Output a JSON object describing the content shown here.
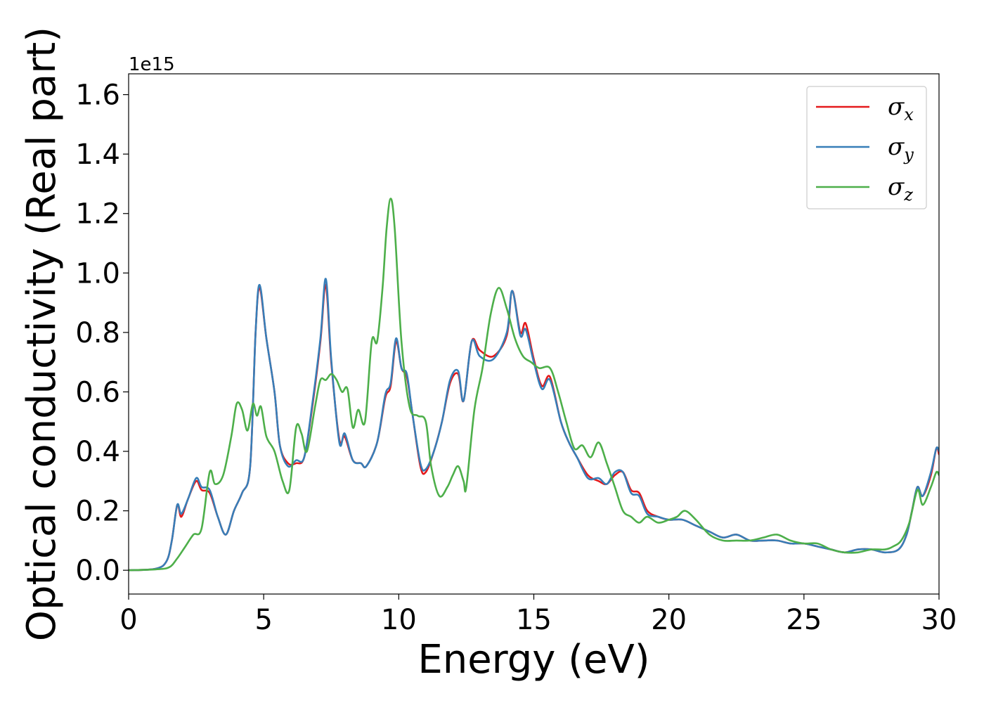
{
  "chart_data": {
    "type": "line",
    "xlabel": "Energy (eV)",
    "ylabel": "Optical conductivity (Real part)",
    "y_offset_label": "1e15",
    "xlim": [
      0,
      30
    ],
    "ylim": [
      -0.08,
      1.67
    ],
    "x_ticks": [
      0,
      5,
      10,
      15,
      20,
      25,
      30
    ],
    "x_tick_labels": [
      "0",
      "5",
      "10",
      "15",
      "20",
      "25",
      "30"
    ],
    "y_ticks": [
      0.0,
      0.2,
      0.4,
      0.6,
      0.8,
      1.0,
      1.2,
      1.4,
      1.6
    ],
    "y_tick_labels": [
      "0.0",
      "0.2",
      "0.4",
      "0.6",
      "0.8",
      "1.0",
      "1.2",
      "1.4",
      "1.6"
    ],
    "grid": false,
    "legend_position": "top-right",
    "series": [
      {
        "name": "σx",
        "symbol": "σ",
        "subscript": "x",
        "color": "#e41a1c",
        "points": [
          [
            0,
            0
          ],
          [
            1,
            0.005
          ],
          [
            1.4,
            0.03
          ],
          [
            1.6,
            0.1
          ],
          [
            1.8,
            0.22
          ],
          [
            1.95,
            0.18
          ],
          [
            2.2,
            0.24
          ],
          [
            2.5,
            0.3
          ],
          [
            2.7,
            0.27
          ],
          [
            3.0,
            0.26
          ],
          [
            3.3,
            0.18
          ],
          [
            3.6,
            0.12
          ],
          [
            3.9,
            0.2
          ],
          [
            4.2,
            0.26
          ],
          [
            4.5,
            0.35
          ],
          [
            4.7,
            0.8
          ],
          [
            4.85,
            0.95
          ],
          [
            5.1,
            0.78
          ],
          [
            5.4,
            0.6
          ],
          [
            5.6,
            0.42
          ],
          [
            5.9,
            0.36
          ],
          [
            6.2,
            0.36
          ],
          [
            6.5,
            0.38
          ],
          [
            6.8,
            0.55
          ],
          [
            7.1,
            0.77
          ],
          [
            7.3,
            0.96
          ],
          [
            7.5,
            0.7
          ],
          [
            7.8,
            0.44
          ],
          [
            8.0,
            0.45
          ],
          [
            8.3,
            0.37
          ],
          [
            8.6,
            0.36
          ],
          [
            8.8,
            0.35
          ],
          [
            9.2,
            0.43
          ],
          [
            9.5,
            0.58
          ],
          [
            9.7,
            0.62
          ],
          [
            9.9,
            0.77
          ],
          [
            10.1,
            0.68
          ],
          [
            10.3,
            0.65
          ],
          [
            10.5,
            0.53
          ],
          [
            10.8,
            0.35
          ],
          [
            11.0,
            0.33
          ],
          [
            11.3,
            0.4
          ],
          [
            11.6,
            0.5
          ],
          [
            11.9,
            0.63
          ],
          [
            12.2,
            0.66
          ],
          [
            12.4,
            0.57
          ],
          [
            12.7,
            0.77
          ],
          [
            13.0,
            0.74
          ],
          [
            13.5,
            0.72
          ],
          [
            14.0,
            0.79
          ],
          [
            14.2,
            0.94
          ],
          [
            14.5,
            0.8
          ],
          [
            14.7,
            0.83
          ],
          [
            15.0,
            0.71
          ],
          [
            15.3,
            0.62
          ],
          [
            15.6,
            0.65
          ],
          [
            16.0,
            0.5
          ],
          [
            16.3,
            0.43
          ],
          [
            16.6,
            0.38
          ],
          [
            17.0,
            0.32
          ],
          [
            17.4,
            0.3
          ],
          [
            17.7,
            0.29
          ],
          [
            18.0,
            0.32
          ],
          [
            18.3,
            0.33
          ],
          [
            18.6,
            0.27
          ],
          [
            18.9,
            0.26
          ],
          [
            19.2,
            0.2
          ],
          [
            19.6,
            0.18
          ],
          [
            20.0,
            0.17
          ],
          [
            20.5,
            0.17
          ],
          [
            21.0,
            0.15
          ],
          [
            21.5,
            0.13
          ],
          [
            22.0,
            0.11
          ],
          [
            22.5,
            0.12
          ],
          [
            23.0,
            0.1
          ],
          [
            23.5,
            0.1
          ],
          [
            24.0,
            0.1
          ],
          [
            24.5,
            0.09
          ],
          [
            25.0,
            0.09
          ],
          [
            25.5,
            0.08
          ],
          [
            26.0,
            0.07
          ],
          [
            26.5,
            0.06
          ],
          [
            27.0,
            0.07
          ],
          [
            27.5,
            0.07
          ],
          [
            28.0,
            0.06
          ],
          [
            28.5,
            0.07
          ],
          [
            28.8,
            0.12
          ],
          [
            29.0,
            0.2
          ],
          [
            29.2,
            0.28
          ],
          [
            29.4,
            0.25
          ],
          [
            29.7,
            0.32
          ],
          [
            29.9,
            0.41
          ],
          [
            30.0,
            0.39
          ]
        ]
      },
      {
        "name": "σy",
        "symbol": "σ",
        "subscript": "y",
        "color": "#377eb8",
        "points": [
          [
            0,
            0
          ],
          [
            1,
            0.005
          ],
          [
            1.4,
            0.03
          ],
          [
            1.6,
            0.1
          ],
          [
            1.8,
            0.22
          ],
          [
            1.95,
            0.19
          ],
          [
            2.2,
            0.24
          ],
          [
            2.5,
            0.31
          ],
          [
            2.7,
            0.28
          ],
          [
            3.0,
            0.27
          ],
          [
            3.3,
            0.18
          ],
          [
            3.6,
            0.12
          ],
          [
            3.9,
            0.2
          ],
          [
            4.2,
            0.26
          ],
          [
            4.5,
            0.35
          ],
          [
            4.7,
            0.8
          ],
          [
            4.85,
            0.96
          ],
          [
            5.1,
            0.78
          ],
          [
            5.4,
            0.6
          ],
          [
            5.6,
            0.42
          ],
          [
            5.9,
            0.35
          ],
          [
            6.2,
            0.37
          ],
          [
            6.5,
            0.38
          ],
          [
            6.8,
            0.56
          ],
          [
            7.1,
            0.78
          ],
          [
            7.3,
            0.98
          ],
          [
            7.5,
            0.71
          ],
          [
            7.8,
            0.43
          ],
          [
            8.0,
            0.46
          ],
          [
            8.3,
            0.37
          ],
          [
            8.6,
            0.36
          ],
          [
            8.8,
            0.35
          ],
          [
            9.2,
            0.43
          ],
          [
            9.5,
            0.59
          ],
          [
            9.7,
            0.63
          ],
          [
            9.9,
            0.78
          ],
          [
            10.1,
            0.68
          ],
          [
            10.3,
            0.66
          ],
          [
            10.5,
            0.53
          ],
          [
            10.8,
            0.36
          ],
          [
            11.0,
            0.34
          ],
          [
            11.3,
            0.4
          ],
          [
            11.6,
            0.5
          ],
          [
            11.9,
            0.64
          ],
          [
            12.2,
            0.67
          ],
          [
            12.4,
            0.57
          ],
          [
            12.7,
            0.77
          ],
          [
            13.0,
            0.72
          ],
          [
            13.5,
            0.71
          ],
          [
            14.0,
            0.8
          ],
          [
            14.2,
            0.94
          ],
          [
            14.5,
            0.79
          ],
          [
            14.7,
            0.81
          ],
          [
            15.0,
            0.7
          ],
          [
            15.3,
            0.61
          ],
          [
            15.6,
            0.64
          ],
          [
            16.0,
            0.5
          ],
          [
            16.3,
            0.43
          ],
          [
            16.6,
            0.38
          ],
          [
            17.0,
            0.31
          ],
          [
            17.4,
            0.31
          ],
          [
            17.7,
            0.29
          ],
          [
            18.0,
            0.33
          ],
          [
            18.3,
            0.33
          ],
          [
            18.6,
            0.26
          ],
          [
            18.9,
            0.25
          ],
          [
            19.2,
            0.19
          ],
          [
            19.6,
            0.18
          ],
          [
            20.0,
            0.17
          ],
          [
            20.5,
            0.17
          ],
          [
            21.0,
            0.15
          ],
          [
            21.5,
            0.13
          ],
          [
            22.0,
            0.11
          ],
          [
            22.5,
            0.12
          ],
          [
            23.0,
            0.1
          ],
          [
            23.5,
            0.1
          ],
          [
            24.0,
            0.1
          ],
          [
            24.5,
            0.09
          ],
          [
            25.0,
            0.09
          ],
          [
            25.5,
            0.08
          ],
          [
            26.0,
            0.07
          ],
          [
            26.5,
            0.06
          ],
          [
            27.0,
            0.07
          ],
          [
            27.5,
            0.07
          ],
          [
            28.0,
            0.06
          ],
          [
            28.5,
            0.07
          ],
          [
            28.8,
            0.12
          ],
          [
            29.0,
            0.2
          ],
          [
            29.2,
            0.28
          ],
          [
            29.4,
            0.25
          ],
          [
            29.7,
            0.33
          ],
          [
            29.9,
            0.41
          ],
          [
            30.0,
            0.4
          ]
        ]
      },
      {
        "name": "σz",
        "symbol": "σ",
        "subscript": "z",
        "color": "#4daf4a",
        "points": [
          [
            0,
            0
          ],
          [
            1,
            0.003
          ],
          [
            1.5,
            0.01
          ],
          [
            1.8,
            0.04
          ],
          [
            2.1,
            0.08
          ],
          [
            2.4,
            0.12
          ],
          [
            2.7,
            0.14
          ],
          [
            3.0,
            0.33
          ],
          [
            3.2,
            0.29
          ],
          [
            3.5,
            0.32
          ],
          [
            3.8,
            0.45
          ],
          [
            4.0,
            0.56
          ],
          [
            4.2,
            0.54
          ],
          [
            4.4,
            0.47
          ],
          [
            4.6,
            0.56
          ],
          [
            4.75,
            0.52
          ],
          [
            4.9,
            0.55
          ],
          [
            5.1,
            0.45
          ],
          [
            5.4,
            0.4
          ],
          [
            5.7,
            0.3
          ],
          [
            5.95,
            0.27
          ],
          [
            6.2,
            0.48
          ],
          [
            6.4,
            0.46
          ],
          [
            6.6,
            0.4
          ],
          [
            6.9,
            0.55
          ],
          [
            7.1,
            0.64
          ],
          [
            7.3,
            0.64
          ],
          [
            7.5,
            0.66
          ],
          [
            7.7,
            0.64
          ],
          [
            7.9,
            0.6
          ],
          [
            8.1,
            0.61
          ],
          [
            8.3,
            0.48
          ],
          [
            8.5,
            0.54
          ],
          [
            8.75,
            0.5
          ],
          [
            9.0,
            0.77
          ],
          [
            9.2,
            0.77
          ],
          [
            9.4,
            0.95
          ],
          [
            9.55,
            1.15
          ],
          [
            9.7,
            1.25
          ],
          [
            9.85,
            1.15
          ],
          [
            10.1,
            0.77
          ],
          [
            10.4,
            0.55
          ],
          [
            10.7,
            0.52
          ],
          [
            11.0,
            0.5
          ],
          [
            11.2,
            0.35
          ],
          [
            11.5,
            0.25
          ],
          [
            11.8,
            0.28
          ],
          [
            12.0,
            0.32
          ],
          [
            12.2,
            0.35
          ],
          [
            12.4,
            0.3
          ],
          [
            12.5,
            0.28
          ],
          [
            12.8,
            0.54
          ],
          [
            13.1,
            0.68
          ],
          [
            13.4,
            0.86
          ],
          [
            13.7,
            0.95
          ],
          [
            14.0,
            0.88
          ],
          [
            14.3,
            0.78
          ],
          [
            14.6,
            0.72
          ],
          [
            14.9,
            0.7
          ],
          [
            15.2,
            0.68
          ],
          [
            15.6,
            0.68
          ],
          [
            15.9,
            0.6
          ],
          [
            16.2,
            0.5
          ],
          [
            16.5,
            0.41
          ],
          [
            16.8,
            0.42
          ],
          [
            17.1,
            0.38
          ],
          [
            17.4,
            0.43
          ],
          [
            17.7,
            0.36
          ],
          [
            18.0,
            0.28
          ],
          [
            18.3,
            0.2
          ],
          [
            18.6,
            0.18
          ],
          [
            18.9,
            0.16
          ],
          [
            19.2,
            0.18
          ],
          [
            19.6,
            0.16
          ],
          [
            20.0,
            0.17
          ],
          [
            20.3,
            0.18
          ],
          [
            20.6,
            0.2
          ],
          [
            21.0,
            0.17
          ],
          [
            21.5,
            0.12
          ],
          [
            22.0,
            0.1
          ],
          [
            22.5,
            0.1
          ],
          [
            23.0,
            0.1
          ],
          [
            23.5,
            0.11
          ],
          [
            24.0,
            0.12
          ],
          [
            24.5,
            0.1
          ],
          [
            25.0,
            0.09
          ],
          [
            25.5,
            0.09
          ],
          [
            26.0,
            0.07
          ],
          [
            26.5,
            0.06
          ],
          [
            27.0,
            0.06
          ],
          [
            27.5,
            0.07
          ],
          [
            28.0,
            0.07
          ],
          [
            28.3,
            0.08
          ],
          [
            28.6,
            0.1
          ],
          [
            28.9,
            0.16
          ],
          [
            29.2,
            0.27
          ],
          [
            29.4,
            0.22
          ],
          [
            29.7,
            0.28
          ],
          [
            29.9,
            0.33
          ],
          [
            30.0,
            0.32
          ]
        ]
      }
    ]
  }
}
